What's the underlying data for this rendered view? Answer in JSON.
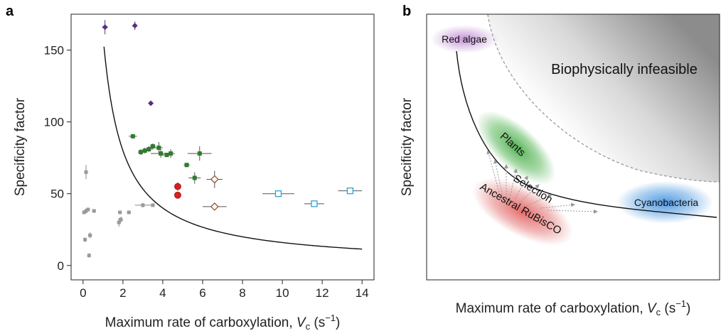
{
  "chart_data": [
    {
      "panel": "a",
      "type": "scatter",
      "xlabel_text": "Maximum rate of carboxylation, ",
      "xlabel_var": "V",
      "xlabel_sub": "c",
      "xlabel_unit_open": " (s",
      "xlabel_unit_exp": "−1",
      "xlabel_unit_close": ")",
      "ylabel": "Specificity factor",
      "xlim": [
        -0.6,
        14.6
      ],
      "ylim": [
        -10,
        175
      ],
      "xticks": [
        0,
        2,
        4,
        6,
        8,
        10,
        12,
        14
      ],
      "yticks": [
        0,
        50,
        100,
        150
      ],
      "colors": {
        "purple": "#5b2c83",
        "green": "#2f7d2f",
        "red": "#d62020",
        "brown": "#8a4a2a",
        "blue": "#2fa0d6",
        "gray": "#9a9a9a"
      },
      "series": [
        {
          "key": "purple",
          "marker": "diamond",
          "points": [
            {
              "x": 1.1,
              "y": 166,
              "ex": 0.15,
              "ey": 5
            },
            {
              "x": 2.6,
              "y": 167,
              "ex": 0.1,
              "ey": 3
            },
            {
              "x": 3.4,
              "y": 113,
              "ex": 0,
              "ey": 0
            }
          ]
        },
        {
          "key": "green",
          "marker": "square",
          "points": [
            {
              "x": 2.5,
              "y": 90,
              "ex": 0.2,
              "ey": 1.5
            },
            {
              "x": 2.9,
              "y": 79,
              "ex": 0.15,
              "ey": 2
            },
            {
              "x": 3.1,
              "y": 80,
              "ex": 0.15,
              "ey": 2
            },
            {
              "x": 3.3,
              "y": 81,
              "ex": 0.2,
              "ey": 2
            },
            {
              "x": 3.5,
              "y": 83,
              "ex": 0.15,
              "ey": 2
            },
            {
              "x": 3.8,
              "y": 82,
              "ex": 0.2,
              "ey": 4
            },
            {
              "x": 3.9,
              "y": 78,
              "ex": 0.5,
              "ey": 3
            },
            {
              "x": 4.2,
              "y": 77,
              "ex": 0.2,
              "ey": 1.5
            },
            {
              "x": 4.4,
              "y": 78,
              "ex": 0.2,
              "ey": 3
            },
            {
              "x": 5.2,
              "y": 70,
              "ex": 0.15,
              "ey": 1.5
            },
            {
              "x": 5.6,
              "y": 61,
              "ex": 0.3,
              "ey": 4
            },
            {
              "x": 5.85,
              "y": 78,
              "ex": 0.6,
              "ey": 5
            }
          ]
        },
        {
          "key": "red",
          "marker": "circle",
          "points": [
            {
              "x": 4.75,
              "y": 55,
              "ex": 0,
              "ey": 3
            },
            {
              "x": 4.75,
              "y": 49,
              "ex": 0,
              "ey": 2
            }
          ]
        },
        {
          "key": "brown",
          "marker": "open-diamond",
          "points": [
            {
              "x": 6.6,
              "y": 60,
              "ex": 0.4,
              "ey": 6
            },
            {
              "x": 6.6,
              "y": 41,
              "ex": 0.6,
              "ey": 1.5
            }
          ]
        },
        {
          "key": "blue",
          "marker": "open-square",
          "points": [
            {
              "x": 9.8,
              "y": 50,
              "ex": 0.8,
              "ey": 2
            },
            {
              "x": 11.6,
              "y": 43,
              "ex": 0.5,
              "ey": 1
            },
            {
              "x": 13.4,
              "y": 52,
              "ex": 0.6,
              "ey": 2
            }
          ]
        },
        {
          "key": "gray",
          "marker": "square",
          "points": [
            {
              "x": 0.05,
              "y": 37,
              "ex": 0,
              "ey": 1
            },
            {
              "x": 0.15,
              "y": 38,
              "ex": 0.1,
              "ey": 1.5
            },
            {
              "x": 0.25,
              "y": 39,
              "ex": 0.1,
              "ey": 1
            },
            {
              "x": 0.55,
              "y": 38,
              "ex": 0.1,
              "ey": 1
            },
            {
              "x": 0.15,
              "y": 65,
              "ex": 0,
              "ey": 5
            },
            {
              "x": 0.1,
              "y": 18,
              "ex": 0,
              "ey": 1.5
            },
            {
              "x": 0.35,
              "y": 21,
              "ex": 0.1,
              "ey": 2
            },
            {
              "x": 0.3,
              "y": 7,
              "ex": 0,
              "ey": 1.5
            },
            {
              "x": 1.8,
              "y": 30,
              "ex": 0,
              "ey": 3
            },
            {
              "x": 1.9,
              "y": 32,
              "ex": 0,
              "ey": 2
            },
            {
              "x": 1.85,
              "y": 37,
              "ex": 0.1,
              "ey": 1
            },
            {
              "x": 2.3,
              "y": 37,
              "ex": 0.1,
              "ey": 1
            },
            {
              "x": 3.0,
              "y": 42,
              "ex": 0.4,
              "ey": 1.5
            },
            {
              "x": 3.5,
              "y": 42,
              "ex": 0.1,
              "ey": 1
            }
          ]
        }
      ],
      "fit_curve": {
        "k": 160,
        "x_from": 1.05,
        "x_to": 14
      }
    },
    {
      "panel": "b",
      "type": "scatter",
      "xlabel_text": "Maximum rate of carboxylation, ",
      "xlabel_var": "V",
      "xlabel_sub": "c",
      "xlabel_unit_open": " (s",
      "xlabel_unit_exp": "−1",
      "xlabel_unit_close": ")",
      "ylabel": "Specificity factor",
      "regions": {
        "red_algae": "Red algae",
        "infeasible": "Biophysically infeasible",
        "plants": "Plants",
        "selection": "Selection",
        "ancestral": "Ancestral RuBisCO",
        "cyanobacteria": "Cyanobacteria"
      },
      "colors": {
        "red_algae": "#b070c8",
        "plants": "#5cb85c",
        "ancestral": "#e06060",
        "cyanobacteria": "#4a98e0",
        "infeasible": "#9a9a9a",
        "arrows": "#999999"
      }
    }
  ]
}
